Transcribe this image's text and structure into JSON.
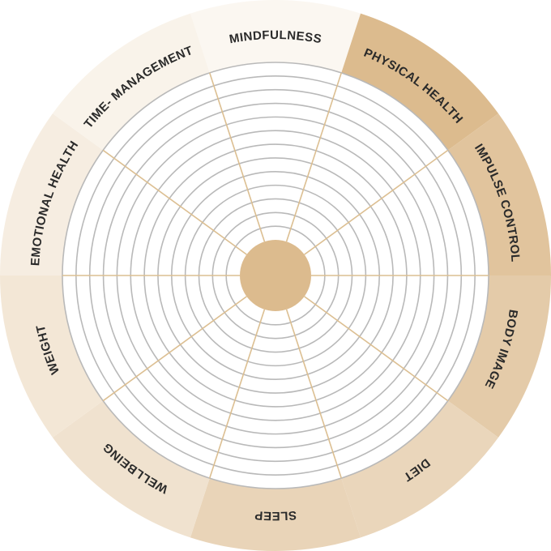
{
  "wheel": {
    "ring_count": 13,
    "colors": {
      "inner_fill": "#ffffff",
      "hub": "#dcbb8e",
      "ring_stroke": "#b9b9b9",
      "spoke_stroke": "#dcbf92",
      "label_text": "#2a2a2a"
    },
    "segments": [
      {
        "label": "MINDFULNESS",
        "color": "#fbf7f1"
      },
      {
        "label": "PHYSICAL HEALTH",
        "color": "#dcbb8e"
      },
      {
        "label": "IMPULSE CONTROL",
        "color": "#e1c49d"
      },
      {
        "label": "BODY IMAGE",
        "color": "#e4cba9"
      },
      {
        "label": "DIET",
        "color": "#ead6bb"
      },
      {
        "label": "SLEEP",
        "color": "#e9d4b8"
      },
      {
        "label": "WELLBEING",
        "color": "#f0e2cf"
      },
      {
        "label": "WEIGHT",
        "color": "#f3e7d6"
      },
      {
        "label": "EMOTIONAL HEALTH",
        "color": "#f6ede1"
      },
      {
        "label": "TIME- MANAGEMENT",
        "color": "#f9f3ea"
      }
    ]
  }
}
